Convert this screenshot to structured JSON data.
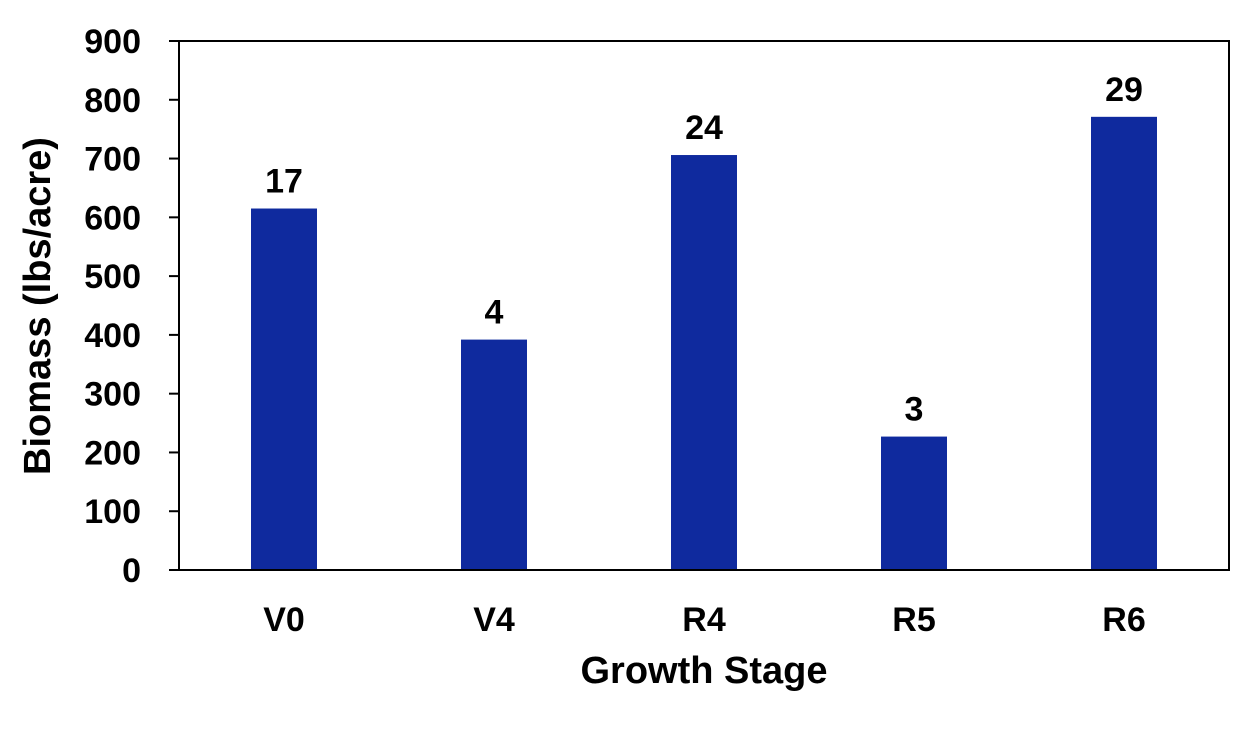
{
  "chart_data": {
    "type": "bar",
    "categories": [
      "V0",
      "V4",
      "R4",
      "R5",
      "R6"
    ],
    "values": [
      615,
      392,
      706,
      227,
      771
    ],
    "data_labels": [
      "17",
      "4",
      "24",
      "3",
      "29"
    ],
    "title": "",
    "xlabel": "Growth Stage",
    "ylabel": "Biomass (lbs/acre)",
    "ylim": [
      0,
      900
    ],
    "yticks": [
      0,
      100,
      200,
      300,
      400,
      500,
      600,
      700,
      800,
      900
    ],
    "grid": false,
    "legend": "none",
    "bar_color": "#0F2A9E"
  }
}
